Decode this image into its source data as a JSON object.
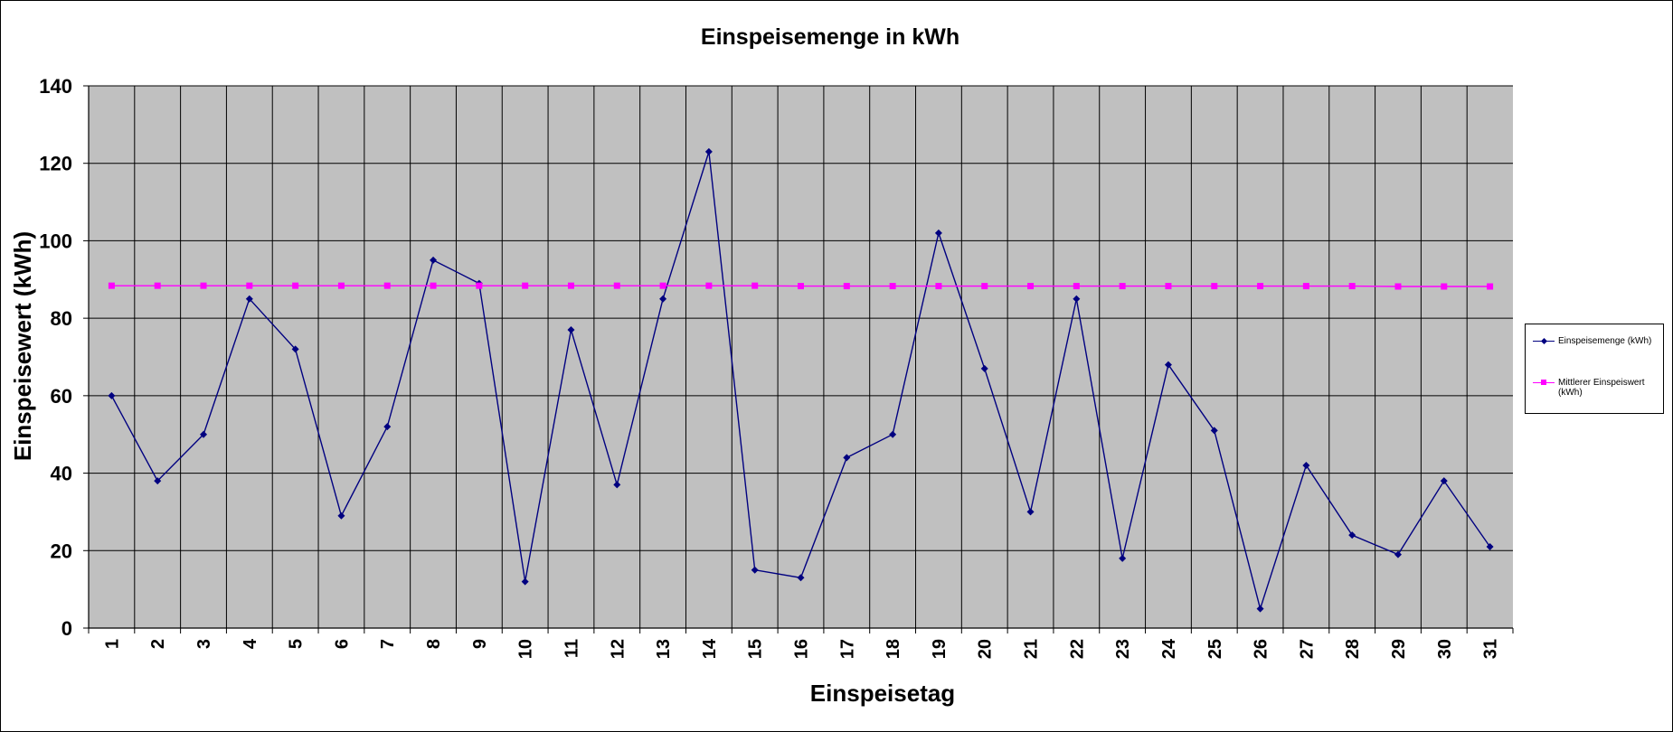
{
  "chart_data": {
    "type": "line",
    "title": "Einspeisemenge in kWh",
    "xlabel": "Einspeisetag",
    "ylabel": "Einspeisewert  (kWh)",
    "ylim": [
      0,
      140
    ],
    "yticks": [
      0,
      20,
      40,
      60,
      80,
      100,
      120,
      140
    ],
    "grid": true,
    "legend_position": "right",
    "plot_background": "#c0c0c0",
    "categories": [
      "1",
      "2",
      "3",
      "4",
      "5",
      "6",
      "7",
      "8",
      "9",
      "10",
      "11",
      "12",
      "13",
      "14",
      "15",
      "16",
      "17",
      "18",
      "19",
      "20",
      "21",
      "22",
      "23",
      "24",
      "25",
      "26",
      "27",
      "28",
      "29",
      "30",
      "31"
    ],
    "series": [
      {
        "name": "Einspeisemenge (kWh)",
        "color": "#000080",
        "marker": "diamond",
        "values": [
          60,
          38,
          50,
          85,
          72,
          29,
          52,
          95,
          89,
          12,
          77,
          37,
          85,
          123,
          15,
          13,
          44,
          50,
          102,
          67,
          30,
          85,
          18,
          68,
          51,
          5,
          42,
          24,
          19,
          38,
          21
        ]
      },
      {
        "name": "Mittlerer Einspeiswert (kWh)",
        "color": "#ff00ff",
        "marker": "square",
        "values": [
          88.4,
          88.4,
          88.4,
          88.4,
          88.4,
          88.4,
          88.4,
          88.4,
          88.4,
          88.4,
          88.4,
          88.4,
          88.4,
          88.4,
          88.4,
          88.3,
          88.3,
          88.3,
          88.3,
          88.3,
          88.3,
          88.3,
          88.3,
          88.3,
          88.3,
          88.3,
          88.3,
          88.3,
          88.2,
          88.2,
          88.2
        ]
      }
    ]
  }
}
